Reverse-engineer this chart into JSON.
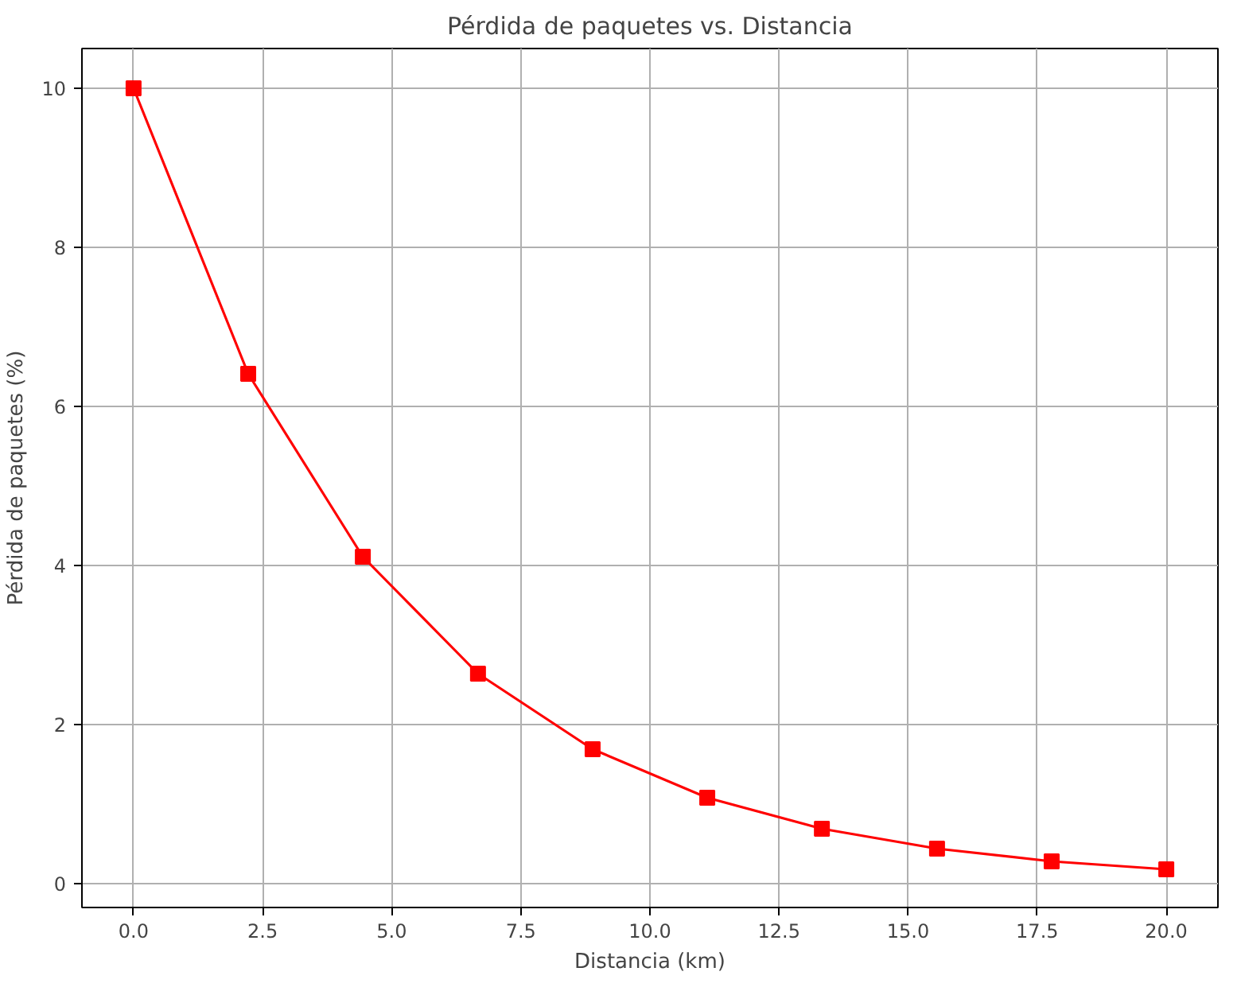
{
  "chart_data": {
    "type": "line",
    "title": "Pérdida de paquetes vs. Distancia",
    "xlabel": "Distancia (km)",
    "ylabel": "Pérdida de paquetes (%)",
    "x": [
      0,
      2.22,
      4.44,
      6.67,
      8.89,
      11.11,
      13.33,
      15.56,
      17.78,
      20
    ],
    "series": [
      {
        "color": "#ff0000",
        "values": [
          10,
          6.41,
          4.11,
          2.64,
          1.69,
          1.08,
          0.69,
          0.44,
          0.28,
          0.18
        ]
      }
    ],
    "xlim": [
      -1,
      21
    ],
    "ylim": [
      -0.3,
      10.5
    ],
    "xticks": [
      {
        "value": 0,
        "label": "0.0"
      },
      {
        "value": 2.5,
        "label": "2.5"
      },
      {
        "value": 5,
        "label": "5.0"
      },
      {
        "value": 7.5,
        "label": "7.5"
      },
      {
        "value": 10,
        "label": "10.0"
      },
      {
        "value": 12.5,
        "label": "12.5"
      },
      {
        "value": 15,
        "label": "15.0"
      },
      {
        "value": 17.5,
        "label": "17.5"
      },
      {
        "value": 20,
        "label": "20.0"
      }
    ],
    "yticks": [
      0,
      2,
      4,
      6,
      8,
      10
    ],
    "grid": true,
    "marker": "square",
    "line_style": "solid"
  }
}
